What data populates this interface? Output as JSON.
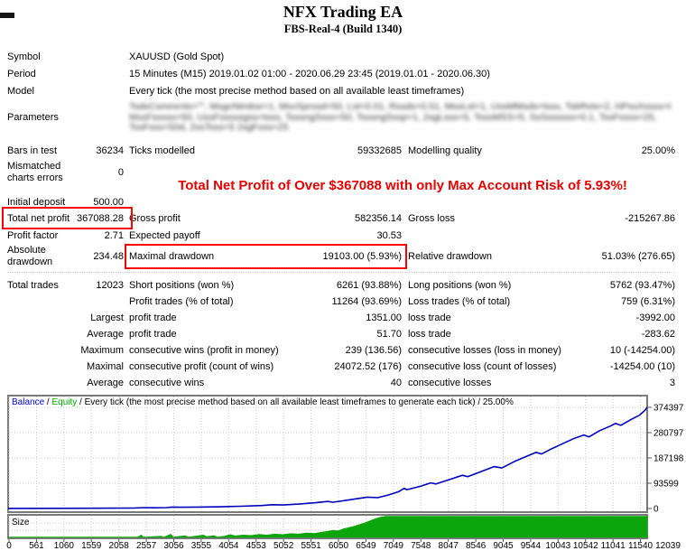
{
  "header": {
    "title": "NFX Trading EA",
    "subtitle": "FBS-Real-4 (Build 1340)"
  },
  "info_rows": [
    {
      "label": "Symbol",
      "value": "XAUUSD (Gold Spot)"
    },
    {
      "label": "Period",
      "value": "15 Minutes (M15) 2019.01.02 01:00 - 2020.06.29 23:45 (2019.01.01 - 2020.06.30)"
    },
    {
      "label": "Model",
      "value": "Every tick (the most precise method based on all available least timeframes)"
    },
    {
      "label": "Parameters",
      "value": ""
    }
  ],
  "parameters_blur_lines": [
    "TsdeCsmmrnts=\"\", MsgcNtmbsr=1, MsxSprssd=50, Lst=0.01, Rssds=0.51, MsxLst=1, UssMMsds=tsss, TsbRsts=2, HPssXssss=tsss,",
    "MssFsssss=50, UssFsssssgss=tsss, TsssngSsss=50, TsssngSssp=1, 2sgLsss=5, TsssMSS=5, SsSssssss=0.1, TssFssss=25,",
    "TssFsss=50d, 2ssTsss=5 2sgFsss=25"
  ],
  "headline": {
    "text": "Total Net Profit of Over $367088 with only Max Account Risk of 5.93%!",
    "color": "#e60000"
  },
  "stats_rows": [
    {
      "c1": "Bars in test",
      "c2": "36234",
      "c3": "Ticks modelled",
      "c4": "59332685",
      "c5": "Modelling quality",
      "c6": "25.00%"
    },
    {
      "c1": "Mismatched charts errors",
      "c2": "0"
    },
    {
      "c1": "Initial deposit",
      "c2": "500.00"
    },
    {
      "c1": "Total net profit",
      "c2": "367088.28",
      "c3": "Gross profit",
      "c4": "582356.14",
      "c5": "Gross loss",
      "c6": "-215267.86"
    },
    {
      "c1": "Profit factor",
      "c2": "2.71",
      "c3": "Expected payoff",
      "c4": "30.53"
    },
    {
      "c1": "Absolute drawdown",
      "c2": "234.48",
      "c3": "Maximal drawdown",
      "c4": "19103.00 (5.93%)",
      "c5": "Relative drawdown",
      "c6": "51.03% (276.65)"
    },
    {
      "c1": "Total trades",
      "c2": "12023",
      "c3": "Short positions (won %)",
      "c4": "6261 (93.88%)",
      "c5": "Long positions (won %)",
      "c6": "5762 (93.47%)"
    },
    {
      "c3": "Profit trades (% of total)",
      "c4": "11264 (93.69%)",
      "c5": "Loss trades (% of total)",
      "c6": "759 (6.31%)"
    },
    {
      "c2": "Largest",
      "c3": "profit trade",
      "c4": "1351.00",
      "c5": "loss trade",
      "c6": "-3992.00"
    },
    {
      "c2": "Average",
      "c3": "profit trade",
      "c4": "51.70",
      "c5": "loss trade",
      "c6": "-283.62"
    },
    {
      "c2": "Maximum",
      "c3": "consecutive wins (profit in money)",
      "c4": "239 (136.56)",
      "c5": "consecutive losses (loss in money)",
      "c6": "10 (-14254.00)"
    },
    {
      "c2": "Maximal",
      "c3": "consecutive profit (count of wins)",
      "c4": "24072.52 (176)",
      "c5": "consecutive loss (count of losses)",
      "c6": "-14254.00 (10)"
    },
    {
      "c2": "Average",
      "c3": "consecutive wins",
      "c4": "40",
      "c5": "consecutive losses",
      "c6": "3"
    }
  ],
  "chart_data": {
    "type": "line",
    "legend": [
      {
        "text": "Balance",
        "color": "#0000e0"
      },
      {
        "text": " / ",
        "color": "#000000"
      },
      {
        "text": "Equity",
        "color": "#00a800"
      },
      {
        "text": " / Every tick (the most precise method based on all available least timeframes to generate each tick) / 25.00%",
        "color": "#000000"
      }
    ],
    "y_axis": {
      "labels": [
        "374397",
        "280797",
        "187198",
        "93599",
        "0"
      ],
      "values": [
        374397,
        280797,
        187198,
        93599,
        0
      ],
      "max": 374397
    },
    "x_axis": {
      "labels": [
        "0",
        "561",
        "1060",
        "1559",
        "2058",
        "2557",
        "3056",
        "3555",
        "4054",
        "4553",
        "5052",
        "5551",
        "6050",
        "6549",
        "7049",
        "7548",
        "8047",
        "8546",
        "9045",
        "9544",
        "10043",
        "10542",
        "11041",
        "11540",
        "12039"
      ],
      "max_index": 12100
    },
    "balance_color": "#0000be",
    "grid_color": "#c9c9c9",
    "size_panel": {
      "label": "Size",
      "bar_color": "#0ca50c"
    },
    "balance_series": [
      [
        0,
        500
      ],
      [
        800,
        700
      ],
      [
        1600,
        1100
      ],
      [
        2400,
        1900
      ],
      [
        2600,
        3200
      ],
      [
        2750,
        2600
      ],
      [
        3000,
        3400
      ],
      [
        3100,
        5200
      ],
      [
        3300,
        4600
      ],
      [
        3600,
        5200
      ],
      [
        4000,
        6500
      ],
      [
        4400,
        8500
      ],
      [
        4800,
        11000
      ],
      [
        5000,
        14000
      ],
      [
        5200,
        13000
      ],
      [
        5500,
        16500
      ],
      [
        5800,
        21000
      ],
      [
        6050,
        26000
      ],
      [
        6150,
        23500
      ],
      [
        6500,
        33000
      ],
      [
        6800,
        42000
      ],
      [
        7000,
        40000
      ],
      [
        7200,
        50000
      ],
      [
        7400,
        63000
      ],
      [
        7500,
        75000
      ],
      [
        7550,
        70000
      ],
      [
        7800,
        82000
      ],
      [
        8000,
        95000
      ],
      [
        8100,
        91000
      ],
      [
        8400,
        110000
      ],
      [
        8600,
        123000
      ],
      [
        8700,
        118000
      ],
      [
        9000,
        140000
      ],
      [
        9200,
        155000
      ],
      [
        9350,
        150000
      ],
      [
        9600,
        175000
      ],
      [
        9800,
        192000
      ],
      [
        10000,
        208000
      ],
      [
        10100,
        202000
      ],
      [
        10300,
        222000
      ],
      [
        10500,
        240000
      ],
      [
        10700,
        258000
      ],
      [
        10900,
        272000
      ],
      [
        11000,
        265000
      ],
      [
        11200,
        288000
      ],
      [
        11400,
        305000
      ],
      [
        11500,
        315000
      ],
      [
        11600,
        308000
      ],
      [
        11800,
        330000
      ],
      [
        11950,
        345000
      ],
      [
        12050,
        362000
      ],
      [
        12100,
        374397
      ]
    ],
    "size_series": [
      [
        0,
        0
      ],
      [
        2450,
        0
      ],
      [
        2520,
        0.1
      ],
      [
        2560,
        0
      ],
      [
        2900,
        0.05
      ],
      [
        2950,
        0
      ],
      [
        3080,
        0.14
      ],
      [
        3130,
        0
      ],
      [
        3350,
        0.07
      ],
      [
        3420,
        0
      ],
      [
        3700,
        0.1
      ],
      [
        3760,
        0.02
      ],
      [
        3900,
        0.07
      ],
      [
        3960,
        0
      ],
      [
        4100,
        0.05
      ],
      [
        4200,
        0.12
      ],
      [
        4300,
        0.06
      ],
      [
        4450,
        0.1
      ],
      [
        4600,
        0.08
      ],
      [
        4750,
        0.13
      ],
      [
        4900,
        0.1
      ],
      [
        5050,
        0.15
      ],
      [
        5200,
        0.12
      ],
      [
        5350,
        0.17
      ],
      [
        5500,
        0.15
      ],
      [
        5650,
        0.2
      ],
      [
        5800,
        0.18
      ],
      [
        5950,
        0.24
      ],
      [
        6050,
        0.28
      ],
      [
        6150,
        0.33
      ],
      [
        6250,
        0.3
      ],
      [
        6350,
        0.4
      ],
      [
        6450,
        0.46
      ],
      [
        6550,
        0.52
      ],
      [
        6650,
        0.6
      ],
      [
        6750,
        0.68
      ],
      [
        6850,
        0.78
      ],
      [
        6950,
        0.88
      ],
      [
        7050,
        0.96
      ],
      [
        7150,
        1
      ],
      [
        12100,
        1
      ]
    ]
  }
}
